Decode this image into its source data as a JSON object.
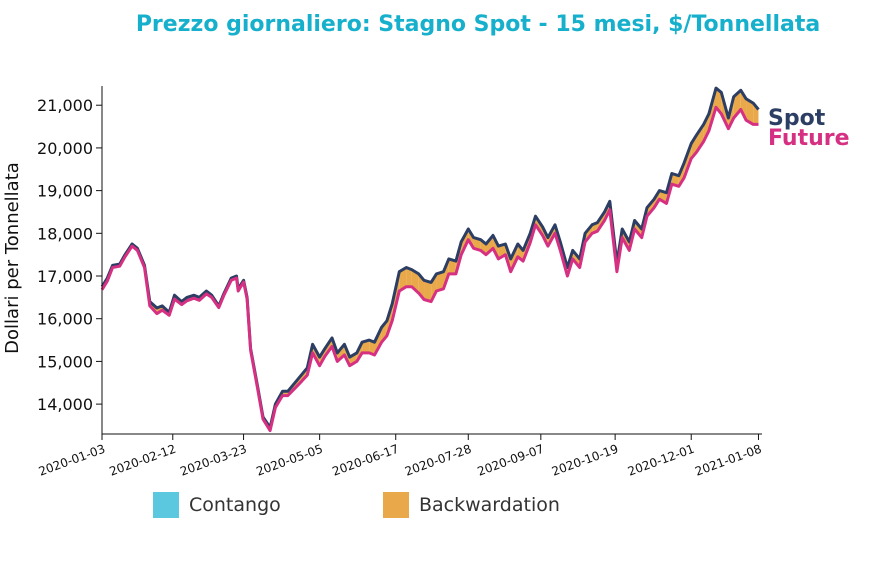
{
  "chart_data": {
    "type": "area",
    "title": "Prezzo giornaliero: Stagno Spot - 15 mesi, $/Tonnellata",
    "ylabel": "Dollari per Tonnellata",
    "xlabel": "",
    "ylim": [
      13300,
      21450
    ],
    "xlim": [
      "2020-01-03",
      "2021-01-10"
    ],
    "yticks": [
      14000,
      15000,
      16000,
      17000,
      18000,
      19000,
      20000,
      21000
    ],
    "ytick_labels": [
      "14,000",
      "15,000",
      "16,000",
      "17,000",
      "18,000",
      "19,000",
      "20,000",
      "21,000"
    ],
    "xticks": [
      "2020-01-03",
      "2020-02-12",
      "2020-03-23",
      "2020-05-05",
      "2020-06-17",
      "2020-07-28",
      "2020-09-07",
      "2020-10-19",
      "2020-12-01",
      "2021-01-08"
    ],
    "xtick_labels": [
      "2020-01-03",
      "2020-02-12",
      "2020-03-23",
      "2020-05-05",
      "2020-06-17",
      "2020-07-28",
      "2020-09-07",
      "2020-10-19",
      "2020-12-01",
      "2021-01-08"
    ],
    "x": [
      "2020-01-03",
      "2020-01-06",
      "2020-01-09",
      "2020-01-13",
      "2020-01-16",
      "2020-01-20",
      "2020-01-23",
      "2020-01-27",
      "2020-01-30",
      "2020-02-03",
      "2020-02-06",
      "2020-02-10",
      "2020-02-13",
      "2020-02-17",
      "2020-02-20",
      "2020-02-24",
      "2020-02-27",
      "2020-03-02",
      "2020-03-05",
      "2020-03-09",
      "2020-03-12",
      "2020-03-16",
      "2020-03-19",
      "2020-03-20",
      "2020-03-23",
      "2020-03-25",
      "2020-03-27",
      "2020-03-31",
      "2020-04-03",
      "2020-04-07",
      "2020-04-10",
      "2020-04-14",
      "2020-04-17",
      "2020-04-21",
      "2020-04-24",
      "2020-04-28",
      "2020-05-01",
      "2020-05-05",
      "2020-05-08",
      "2020-05-12",
      "2020-05-15",
      "2020-05-19",
      "2020-05-22",
      "2020-05-26",
      "2020-05-29",
      "2020-06-02",
      "2020-06-05",
      "2020-06-09",
      "2020-06-12",
      "2020-06-15",
      "2020-06-19",
      "2020-06-23",
      "2020-06-26",
      "2020-06-30",
      "2020-07-03",
      "2020-07-07",
      "2020-07-10",
      "2020-07-14",
      "2020-07-17",
      "2020-07-21",
      "2020-07-24",
      "2020-07-28",
      "2020-07-31",
      "2020-08-04",
      "2020-08-07",
      "2020-08-11",
      "2020-08-14",
      "2020-08-18",
      "2020-08-21",
      "2020-08-25",
      "2020-08-28",
      "2020-09-01",
      "2020-09-04",
      "2020-09-08",
      "2020-09-11",
      "2020-09-15",
      "2020-09-18",
      "2020-09-22",
      "2020-09-25",
      "2020-09-29",
      "2020-10-02",
      "2020-10-06",
      "2020-10-09",
      "2020-10-13",
      "2020-10-16",
      "2020-10-20",
      "2020-10-23",
      "2020-10-27",
      "2020-10-30",
      "2020-11-03",
      "2020-11-06",
      "2020-11-10",
      "2020-11-13",
      "2020-11-17",
      "2020-11-20",
      "2020-11-24",
      "2020-11-27",
      "2020-12-01",
      "2020-12-04",
      "2020-12-08",
      "2020-12-11",
      "2020-12-15",
      "2020-12-18",
      "2020-12-22",
      "2020-12-25",
      "2020-12-29",
      "2021-01-01",
      "2021-01-05",
      "2021-01-08"
    ],
    "series": [
      {
        "name": "Spot",
        "color": "#2c3e63",
        "values": [
          16750,
          16950,
          17250,
          17280,
          17500,
          17750,
          17650,
          17250,
          16400,
          16250,
          16300,
          16150,
          16550,
          16400,
          16500,
          16550,
          16500,
          16650,
          16550,
          16300,
          16600,
          16950,
          17000,
          16700,
          16900,
          16500,
          15300,
          14400,
          13700,
          13450,
          14000,
          14300,
          14300,
          14500,
          14650,
          14850,
          15400,
          15100,
          15300,
          15550,
          15200,
          15400,
          15100,
          15200,
          15450,
          15500,
          15450,
          15800,
          15950,
          16350,
          17100,
          17200,
          17150,
          17050,
          16900,
          16850,
          17050,
          17100,
          17400,
          17350,
          17800,
          18100,
          17900,
          17850,
          17750,
          17950,
          17700,
          17750,
          17400,
          17750,
          17600,
          18000,
          18400,
          18150,
          17900,
          18200,
          17800,
          17200,
          17600,
          17400,
          18000,
          18200,
          18250,
          18500,
          18750,
          17300,
          18100,
          17800,
          18300,
          18100,
          18600,
          18800,
          19000,
          18950,
          19400,
          19350,
          19650,
          20100,
          20300,
          20550,
          20800,
          21400,
          21300,
          20700,
          21200,
          21350,
          21150,
          21050,
          20900
        ]
      },
      {
        "name": "Future",
        "color": "#d63083",
        "values": [
          16680,
          16880,
          17200,
          17230,
          17450,
          17700,
          17600,
          17200,
          16300,
          16120,
          16200,
          16080,
          16460,
          16330,
          16420,
          16480,
          16430,
          16580,
          16500,
          16260,
          16560,
          16900,
          16950,
          16650,
          16860,
          16460,
          15260,
          14350,
          13650,
          13380,
          13920,
          14200,
          14200,
          14370,
          14500,
          14680,
          15200,
          14900,
          15120,
          15350,
          15000,
          15150,
          14900,
          15000,
          15200,
          15200,
          15150,
          15450,
          15600,
          15950,
          16650,
          16750,
          16750,
          16600,
          16450,
          16400,
          16650,
          16700,
          17050,
          17050,
          17500,
          17850,
          17650,
          17600,
          17500,
          17650,
          17400,
          17500,
          17100,
          17450,
          17350,
          17780,
          18200,
          17950,
          17700,
          18000,
          17600,
          17000,
          17400,
          17200,
          17800,
          18000,
          18050,
          18300,
          18550,
          17100,
          17900,
          17600,
          18100,
          17900,
          18400,
          18600,
          18800,
          18700,
          19150,
          19100,
          19300,
          19750,
          19900,
          20150,
          20400,
          20950,
          20800,
          20450,
          20700,
          20900,
          20650,
          20550,
          20550
        ]
      }
    ],
    "end_labels": [
      "Spot",
      "Future"
    ],
    "legend": {
      "position": "bottom",
      "entries": [
        {
          "label": "Contango",
          "color": "#5bc8df"
        },
        {
          "label": "Backwardation",
          "color": "#e9a84a"
        }
      ]
    },
    "grid": false
  }
}
